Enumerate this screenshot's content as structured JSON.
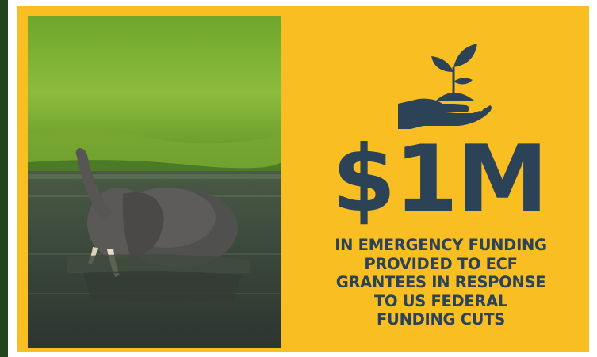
{
  "colors": {
    "background": "#ffffff",
    "side_strip": "#24431f",
    "panel": "#f8be22",
    "text": "#2c4256"
  },
  "photo": {
    "subject_icon": "elephant-photo"
  },
  "icon": {
    "name": "hand-holding-seedling-icon"
  },
  "amount": "$1M",
  "caption_lines": [
    "IN EMERGENCY FUNDING",
    "PROVIDED TO ECF",
    "GRANTEES IN RESPONSE",
    "TO US FEDERAL",
    "FUNDING CUTS"
  ]
}
